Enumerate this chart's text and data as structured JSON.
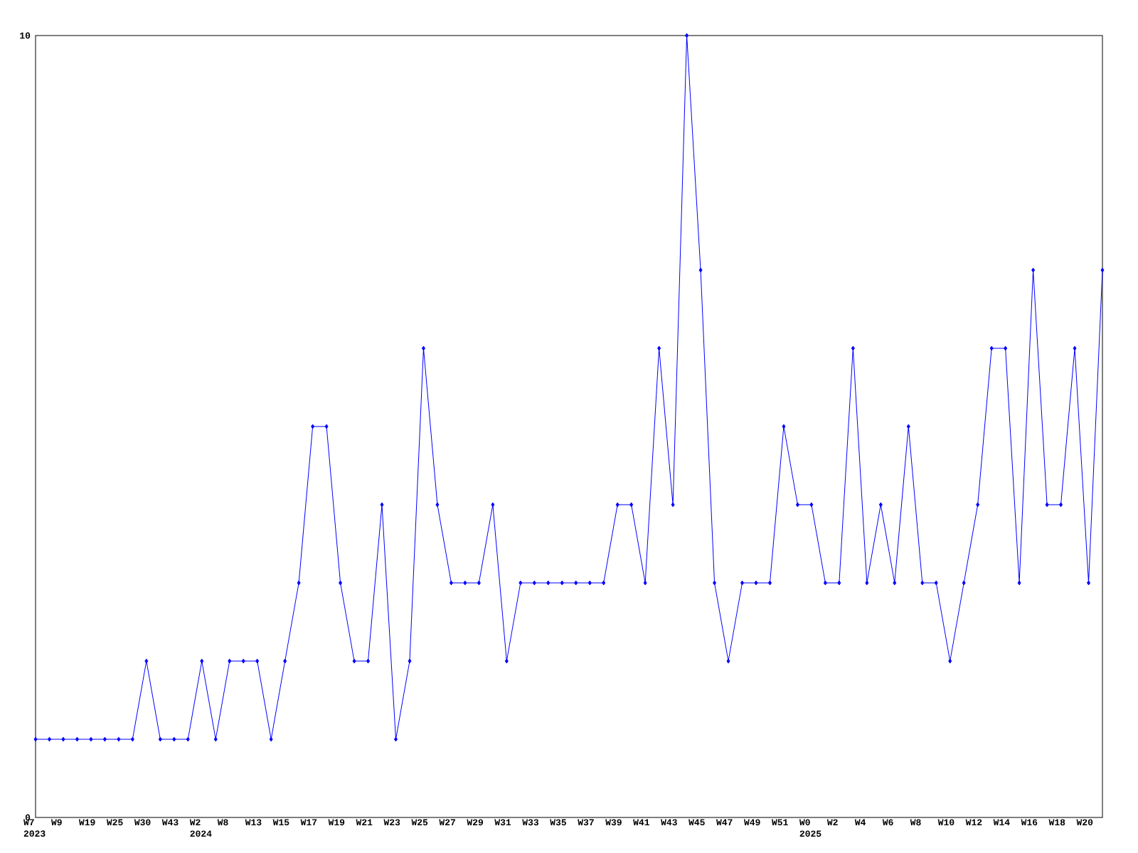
{
  "chart_data": {
    "type": "line",
    "categories": [
      "W7 2023",
      null,
      "W9",
      null,
      "W19",
      null,
      "W25",
      null,
      "W30",
      null,
      "W43",
      null,
      "W2 2024",
      null,
      "W8",
      null,
      "W13",
      null,
      "W15",
      null,
      "W17",
      null,
      "W19",
      null,
      "W21",
      null,
      "W23",
      null,
      "W25",
      null,
      "W27",
      null,
      "W29",
      null,
      "W31",
      null,
      "W33",
      null,
      "W35",
      null,
      "W37",
      null,
      "W39",
      null,
      "W41",
      null,
      "W43",
      null,
      "W45",
      null,
      "W47",
      null,
      "W49",
      null,
      "W51",
      null,
      "W0 2025",
      null,
      "W2",
      null,
      "W4",
      null,
      "W6",
      null,
      "W8",
      null,
      "W10",
      null,
      "W12",
      null,
      "W14",
      null,
      "W16",
      null,
      "W18",
      null,
      "W20",
      null
    ],
    "values": [
      1,
      1,
      1,
      1,
      1,
      1,
      1,
      1,
      2,
      1,
      1,
      1,
      2,
      1,
      2,
      2,
      2,
      1,
      2,
      3,
      5,
      5,
      3,
      2,
      2,
      4,
      1,
      2,
      6,
      4,
      3,
      3,
      3,
      4,
      2,
      3,
      3,
      3,
      3,
      3,
      3,
      3,
      4,
      4,
      3,
      6,
      4,
      10,
      7,
      3,
      2,
      3,
      3,
      3,
      5,
      4,
      4,
      3,
      3,
      6,
      3,
      4,
      3,
      5,
      3,
      3,
      2,
      3,
      4,
      6,
      6,
      3,
      7,
      4,
      4,
      6,
      3,
      7
    ],
    "color": "#0000ff",
    "marker": "diamond",
    "ylim": [
      0,
      10
    ],
    "yticks": [
      0,
      10
    ],
    "grid": false
  }
}
